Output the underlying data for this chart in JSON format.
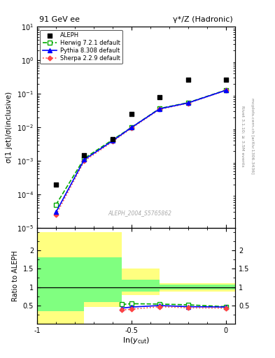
{
  "title_left": "91 GeV ee",
  "title_right": "γ*/Z (Hadronic)",
  "ylabel_main": "σ(1 jet)/σ(inclusive)",
  "ylabel_ratio": "Ratio to ALEPH",
  "xlabel": "ln(y_{cut})",
  "watermark": "ALEPH_2004_S5765862",
  "right_label1": "Rivet 3.1.10; ≥ 3.5M events",
  "right_label2": "mcplots.cern.ch [arXiv:1306.3436]",
  "aleph_x": [
    -0.9,
    -0.75,
    -0.6,
    -0.5,
    -0.35,
    -0.2,
    0.0
  ],
  "aleph_y": [
    0.0002,
    0.0015,
    0.0045,
    0.025,
    0.08,
    0.27,
    0.27
  ],
  "herwig_x": [
    -0.9,
    -0.75,
    -0.6,
    -0.5,
    -0.35,
    -0.2,
    0.0
  ],
  "herwig_y": [
    5e-05,
    0.0012,
    0.0043,
    0.01,
    0.037,
    0.055,
    0.13
  ],
  "pythia_x": [
    -0.9,
    -0.75,
    -0.6,
    -0.5,
    -0.35,
    -0.2,
    0.0
  ],
  "pythia_y": [
    3e-05,
    0.0011,
    0.004,
    0.01,
    0.036,
    0.054,
    0.128
  ],
  "sherpa_x": [
    -0.9,
    -0.75,
    -0.6,
    -0.5,
    -0.35,
    -0.2,
    0.0
  ],
  "sherpa_y": [
    2.5e-05,
    0.001,
    0.0038,
    0.0095,
    0.035,
    0.053,
    0.127
  ],
  "ratio_x": [
    -0.55,
    -0.5,
    -0.35,
    -0.2,
    0.0
  ],
  "ratio_herwig": [
    0.53,
    0.55,
    0.54,
    0.52,
    0.47
  ],
  "ratio_pythia": [
    0.43,
    0.46,
    0.5,
    0.47,
    0.46
  ],
  "ratio_sherpa": [
    0.38,
    0.4,
    0.47,
    0.44,
    0.43
  ],
  "yellow_edges": [
    -1.0,
    -0.75,
    -0.55,
    -0.35,
    0.05
  ],
  "yellow_lo": [
    0.0,
    0.47,
    0.78,
    0.87,
    0.87
  ],
  "yellow_hi": [
    2.5,
    2.5,
    1.5,
    1.1,
    1.1
  ],
  "green_edges": [
    -1.0,
    -0.75,
    -0.55,
    -0.35,
    0.05
  ],
  "green_lo": [
    0.35,
    0.6,
    0.88,
    0.93,
    0.93
  ],
  "green_hi": [
    1.8,
    1.8,
    1.2,
    1.07,
    1.07
  ],
  "xlim": [
    -1.0,
    0.05
  ],
  "ylim_main": [
    1e-05,
    10
  ],
  "ylim_ratio": [
    0.0,
    2.6
  ],
  "color_herwig": "#00aa00",
  "color_pythia": "#0000ff",
  "color_sherpa": "#ff4444",
  "color_aleph": "#000000",
  "color_band_yellow": "#ffff80",
  "color_band_green": "#80ff80"
}
